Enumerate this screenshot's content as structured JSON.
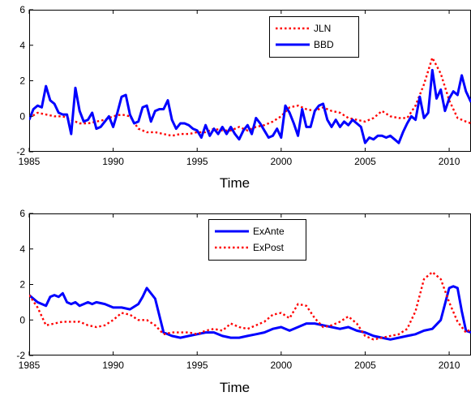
{
  "chart_data": [
    {
      "type": "line",
      "title": "",
      "xlabel": "Time",
      "ylabel": "",
      "xlim": [
        1985,
        2011.3
      ],
      "ylim": [
        -2,
        6
      ],
      "xticks": [
        1985,
        1990,
        1995,
        2000,
        2005,
        2010
      ],
      "yticks": [
        -2,
        0,
        2,
        4,
        6
      ],
      "legend": "top-center",
      "series": [
        {
          "name": "JLN",
          "color": "#ff0000",
          "style": "dotted",
          "x": [
            1985,
            1985.5,
            1986,
            1986.5,
            1987,
            1987.5,
            1988,
            1988.5,
            1989,
            1989.5,
            1990,
            1990.5,
            1991,
            1991.5,
            1992,
            1992.5,
            1993,
            1993.5,
            1994,
            1994.5,
            1995,
            1995.5,
            1996,
            1996.5,
            1997,
            1997.5,
            1998,
            1998.5,
            1999,
            1999.5,
            2000,
            2000.5,
            2001,
            2001.5,
            2002,
            2002.5,
            2003,
            2003.5,
            2004,
            2004.5,
            2005,
            2005.5,
            2006,
            2006.5,
            2007,
            2007.5,
            2008,
            2008.5,
            2009,
            2009.5,
            2010,
            2010.5,
            2011,
            2011.3
          ],
          "values": [
            -0.1,
            0.2,
            0.1,
            0.0,
            0.0,
            -0.2,
            -0.4,
            -0.4,
            -0.3,
            -0.2,
            0.0,
            0.1,
            0.0,
            -0.7,
            -0.9,
            -0.9,
            -1.0,
            -1.1,
            -1.0,
            -1.0,
            -0.9,
            -0.9,
            -0.7,
            -0.8,
            -0.8,
            -0.6,
            -0.8,
            -0.6,
            -0.5,
            -0.3,
            0.0,
            0.5,
            0.6,
            0.4,
            0.3,
            0.5,
            0.3,
            0.2,
            -0.1,
            -0.2,
            -0.3,
            -0.1,
            0.3,
            0.0,
            -0.1,
            -0.1,
            0.6,
            1.8,
            3.3,
            2.4,
            0.9,
            -0.1,
            -0.3,
            -0.4
          ]
        },
        {
          "name": "BBD",
          "color": "#0000ff",
          "style": "solid",
          "x": [
            1985,
            1985.25,
            1985.5,
            1985.75,
            1986,
            1986.25,
            1986.5,
            1986.75,
            1987,
            1987.25,
            1987.5,
            1987.75,
            1988,
            1988.25,
            1988.5,
            1988.75,
            1989,
            1989.25,
            1989.5,
            1989.75,
            1990,
            1990.25,
            1990.5,
            1990.75,
            1991,
            1991.25,
            1991.5,
            1991.75,
            1992,
            1992.25,
            1992.5,
            1992.75,
            1993,
            1993.25,
            1993.5,
            1993.75,
            1994,
            1994.25,
            1994.5,
            1994.75,
            1995,
            1995.25,
            1995.5,
            1995.75,
            1996,
            1996.25,
            1996.5,
            1996.75,
            1997,
            1997.25,
            1997.5,
            1997.75,
            1998,
            1998.25,
            1998.5,
            1998.75,
            1999,
            1999.25,
            1999.5,
            1999.75,
            2000,
            2000.25,
            2000.5,
            2000.75,
            2001,
            2001.25,
            2001.5,
            2001.75,
            2002,
            2002.25,
            2002.5,
            2002.75,
            2003,
            2003.25,
            2003.5,
            2003.75,
            2004,
            2004.25,
            2004.5,
            2004.75,
            2005,
            2005.25,
            2005.5,
            2005.75,
            2006,
            2006.25,
            2006.5,
            2006.75,
            2007,
            2007.25,
            2007.5,
            2007.75,
            2008,
            2008.25,
            2008.5,
            2008.75,
            2009,
            2009.25,
            2009.5,
            2009.75,
            2010,
            2010.25,
            2010.5,
            2010.75,
            2011,
            2011.3
          ],
          "values": [
            -0.2,
            0.4,
            0.6,
            0.5,
            1.7,
            0.9,
            0.7,
            0.2,
            0.1,
            0.1,
            -1.0,
            1.6,
            0.3,
            -0.3,
            -0.2,
            0.2,
            -0.7,
            -0.6,
            -0.3,
            0.0,
            -0.6,
            0.2,
            1.1,
            1.2,
            0.1,
            -0.4,
            -0.3,
            0.5,
            0.6,
            -0.3,
            0.3,
            0.4,
            0.4,
            0.9,
            -0.2,
            -0.7,
            -0.4,
            -0.4,
            -0.5,
            -0.7,
            -0.8,
            -1.2,
            -0.5,
            -1.1,
            -0.7,
            -1.0,
            -0.6,
            -1.0,
            -0.6,
            -1.0,
            -1.3,
            -0.8,
            -0.5,
            -1.0,
            -0.1,
            -0.4,
            -0.8,
            -1.2,
            -1.1,
            -0.7,
            -1.2,
            0.6,
            0.2,
            -0.4,
            -1.1,
            0.4,
            -0.6,
            -0.6,
            0.3,
            0.6,
            0.7,
            -0.2,
            -0.6,
            -0.2,
            -0.6,
            -0.3,
            -0.5,
            -0.2,
            -0.4,
            -0.6,
            -1.5,
            -1.2,
            -1.3,
            -1.1,
            -1.1,
            -1.2,
            -1.1,
            -1.3,
            -1.5,
            -0.9,
            -0.4,
            0.0,
            -0.2,
            1.1,
            -0.1,
            0.2,
            2.6,
            1.0,
            1.5,
            0.3,
            1.0,
            1.4,
            1.2,
            2.3,
            1.4,
            0.8
          ]
        }
      ]
    },
    {
      "type": "line",
      "title": "",
      "xlabel": "Time",
      "ylabel": "",
      "xlim": [
        1985,
        2011.3
      ],
      "ylim": [
        -2,
        6
      ],
      "xticks": [
        1985,
        1990,
        1995,
        2000,
        2005,
        2010
      ],
      "yticks": [
        -2,
        0,
        2,
        4,
        6
      ],
      "legend": "top-center",
      "series": [
        {
          "name": "ExAnte",
          "color": "#0000ff",
          "style": "solid",
          "x": [
            1985,
            1985.5,
            1986,
            1986.25,
            1986.5,
            1986.75,
            1987,
            1987.25,
            1987.5,
            1987.75,
            1988,
            1988.25,
            1988.5,
            1988.75,
            1989,
            1989.5,
            1990,
            1990.5,
            1991,
            1991.5,
            1991.75,
            1992,
            1992.5,
            1993,
            1993.5,
            1994,
            1994.5,
            1995,
            1995.5,
            1996,
            1996.5,
            1997,
            1997.5,
            1998,
            1998.5,
            1999,
            1999.5,
            2000,
            2000.5,
            2001,
            2001.5,
            2002,
            2002.5,
            2003,
            2003.5,
            2004,
            2004.5,
            2005,
            2005.5,
            2006,
            2006.5,
            2007,
            2007.5,
            2008,
            2008.5,
            2009,
            2009.5,
            2010,
            2010.25,
            2010.5,
            2010.75,
            2011,
            2011.3
          ],
          "values": [
            1.4,
            1.0,
            0.8,
            1.3,
            1.4,
            1.3,
            1.5,
            1.0,
            0.9,
            1.0,
            0.8,
            0.9,
            1.0,
            0.9,
            1.0,
            0.9,
            0.7,
            0.7,
            0.6,
            0.9,
            1.3,
            1.8,
            1.2,
            -0.7,
            -0.9,
            -1.0,
            -0.9,
            -0.8,
            -0.7,
            -0.7,
            -0.9,
            -1.0,
            -1.0,
            -0.9,
            -0.8,
            -0.7,
            -0.5,
            -0.4,
            -0.6,
            -0.4,
            -0.2,
            -0.2,
            -0.3,
            -0.4,
            -0.5,
            -0.4,
            -0.6,
            -0.7,
            -0.9,
            -1.0,
            -1.1,
            -1.0,
            -0.9,
            -0.8,
            -0.6,
            -0.5,
            0.0,
            1.8,
            1.9,
            1.8,
            0.5,
            -0.6,
            -0.7
          ]
        },
        {
          "name": "ExPost",
          "color": "#ff0000",
          "style": "dotted",
          "x": [
            1985,
            1985.5,
            1986,
            1986.5,
            1987,
            1987.5,
            1988,
            1988.5,
            1989,
            1989.5,
            1990,
            1990.5,
            1991,
            1991.5,
            1992,
            1992.5,
            1993,
            1993.5,
            1994,
            1994.5,
            1995,
            1995.5,
            1996,
            1996.5,
            1997,
            1997.5,
            1998,
            1998.5,
            1999,
            1999.5,
            2000,
            2000.5,
            2001,
            2001.5,
            2002,
            2002.5,
            2003,
            2003.5,
            2004,
            2004.5,
            2005,
            2005.5,
            2006,
            2006.5,
            2007,
            2007.5,
            2008,
            2008.5,
            2009,
            2009.5,
            2010,
            2010.5,
            2011,
            2011.3
          ],
          "values": [
            1.4,
            0.7,
            -0.3,
            -0.2,
            -0.1,
            -0.1,
            -0.1,
            -0.3,
            -0.4,
            -0.3,
            0.0,
            0.4,
            0.3,
            0.0,
            0.0,
            -0.3,
            -0.8,
            -0.7,
            -0.7,
            -0.7,
            -0.8,
            -0.6,
            -0.5,
            -0.6,
            -0.2,
            -0.4,
            -0.5,
            -0.3,
            -0.1,
            0.3,
            0.4,
            0.1,
            0.9,
            0.8,
            0.1,
            -0.4,
            -0.3,
            -0.1,
            0.2,
            -0.2,
            -0.9,
            -1.1,
            -1.0,
            -0.9,
            -0.8,
            -0.5,
            0.5,
            2.3,
            2.7,
            2.3,
            1.0,
            -0.1,
            -0.7,
            -0.5
          ]
        }
      ]
    }
  ]
}
